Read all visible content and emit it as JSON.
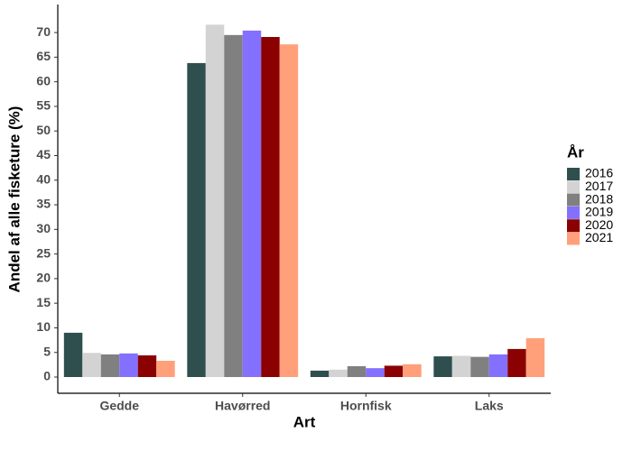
{
  "chart_data": {
    "type": "bar",
    "x_label": "Art",
    "y_label": "Andel af alle fisketure (%)",
    "legend_title": "År",
    "legend_position": "right",
    "grid": false,
    "categories": [
      "Gedde",
      "Havørred",
      "Hornfisk",
      "Laks"
    ],
    "series": [
      {
        "name": "2016",
        "color": "#2f4f4f",
        "values": [
          9.0,
          63.8,
          1.3,
          4.2
        ]
      },
      {
        "name": "2017",
        "color": "#d3d3d3",
        "values": [
          4.9,
          71.6,
          1.5,
          4.3
        ]
      },
      {
        "name": "2018",
        "color": "#808080",
        "values": [
          4.6,
          69.5,
          2.2,
          4.1
        ]
      },
      {
        "name": "2019",
        "color": "#8470ff",
        "values": [
          4.8,
          70.4,
          1.8,
          4.6
        ]
      },
      {
        "name": "2020",
        "color": "#8b0000",
        "values": [
          4.4,
          69.1,
          2.3,
          5.7
        ]
      },
      {
        "name": "2021",
        "color": "#ffa07a",
        "values": [
          3.3,
          67.6,
          2.6,
          7.9
        ]
      }
    ],
    "ylim": [
      -3.3,
      75.7
    ],
    "yticks": [
      0,
      5,
      10,
      15,
      20,
      25,
      30,
      35,
      40,
      45,
      50,
      55,
      60,
      65,
      70
    ]
  }
}
